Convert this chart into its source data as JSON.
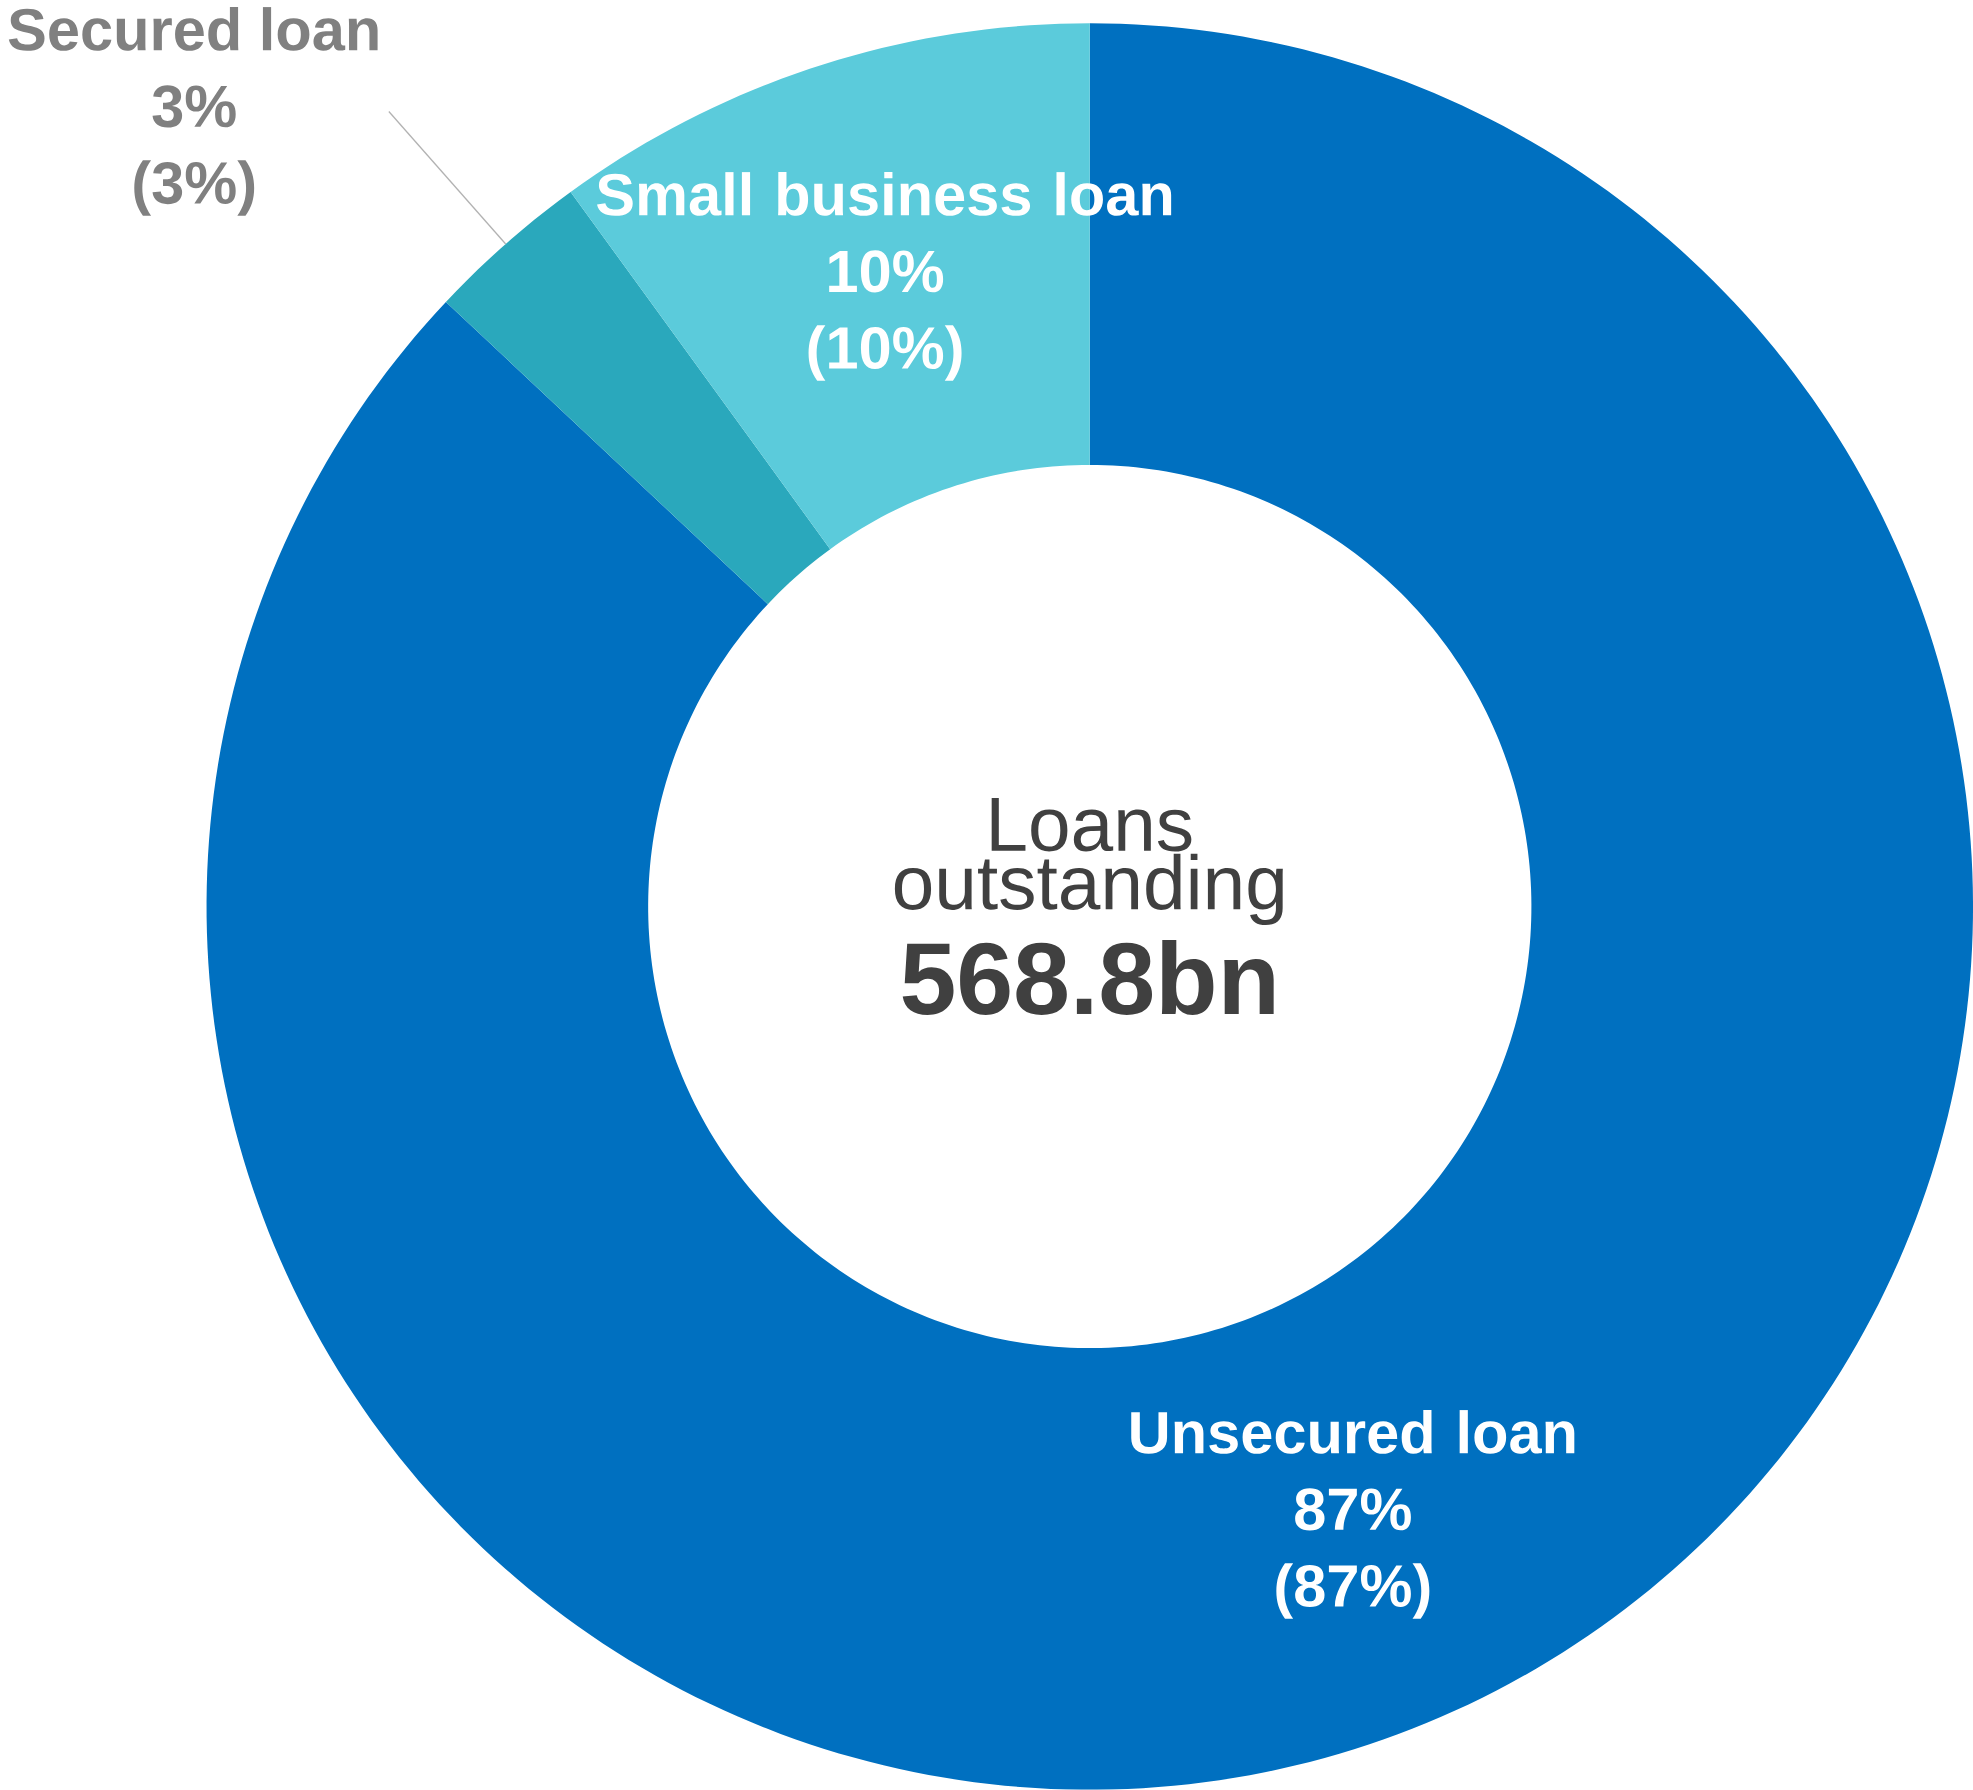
{
  "chart_data": {
    "type": "donut",
    "title": "Loans outstanding",
    "categories": [
      "Unsecured loan",
      "Secured loan",
      "Small business loan"
    ],
    "values": [
      87,
      3,
      10
    ],
    "colors": [
      "#0070c0",
      "#2aa8bc",
      "#5bcbdb"
    ],
    "value_labels": [
      "87%",
      "3%",
      "10%"
    ],
    "annotations": [
      "(87%)",
      "(3%)",
      "(10%)",
      "568.8bn"
    ]
  }
}
